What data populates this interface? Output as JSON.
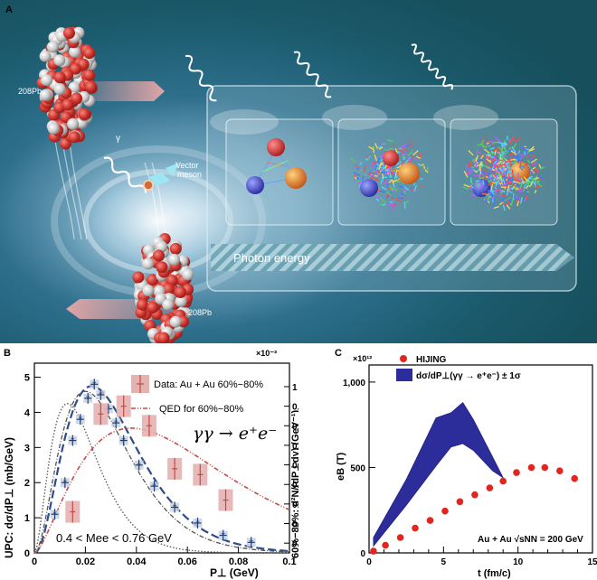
{
  "panelA": {
    "label": "A",
    "pb_top": "208Pb",
    "pb_bottom": "208Pb",
    "gamma": "γ",
    "vector_meson": [
      "Vector",
      "meson"
    ],
    "photon_energy": "Photon energy",
    "colors": {
      "background": "#1f6a7d",
      "nucleon_red": "#d23a32",
      "nucleon_white": "#dcdcdc",
      "arrow_pink": "#e8a5a5",
      "meson_cyan": "#8fe0ef"
    }
  },
  "panelB": {
    "label": "B",
    "ylabel_left": "UPC: dσ/dP⊥ (mb/GeV)",
    "ylabel_right": "60%−80%: d²N/(dP⊥dy) (GeV⁻¹)",
    "exponent_right": "×10⁻³",
    "xlabel": "P⊥ (GeV)",
    "legend_data": "Data: Au + Au 60%−80%",
    "legend_qed": "QED for 60%−80%",
    "process": "γγ → e⁺e⁻",
    "mass_range": "0.4 < Mee < 0.76 GeV",
    "xticks": [
      "0",
      "0.02",
      "0.04",
      "0.06",
      "0.08",
      "0.1"
    ],
    "yticks_left": [
      "0",
      "1",
      "2",
      "3",
      "4",
      "5"
    ],
    "yticks_right": [
      "0.2",
      "0.3",
      "0.4",
      "0.5",
      "0.6",
      "0.7",
      "0.8",
      "0.9",
      "1"
    ]
  },
  "panelC": {
    "label": "C",
    "exponent": "×10¹²",
    "ylabel": "eB (T)",
    "xlabel": "t (fm/c)",
    "legend_hijing": "HIJING",
    "legend_band": "dσ/dP⊥(γγ → e⁺e⁻) ± 1σ",
    "collision": "Au + Au √sNN = 200 GeV",
    "xticks": [
      "0",
      "5",
      "10",
      "15"
    ],
    "yticks": [
      "0",
      "500",
      "1,000"
    ]
  },
  "chart_data": [
    {
      "type": "scatter",
      "title": "",
      "xlabel": "P⊥ (GeV)",
      "ylabel": "UPC: dσ/dP⊥ (mb/GeV)",
      "xlim": [
        0,
        0.1
      ],
      "ylim": [
        0,
        5.4
      ],
      "series": [
        {
          "name": "UPC data",
          "x": [
            0.008,
            0.012,
            0.015,
            0.018,
            0.021,
            0.0235,
            0.026,
            0.029,
            0.032,
            0.035,
            0.041,
            0.047,
            0.055,
            0.064,
            0.074,
            0.085
          ],
          "y": [
            1.1,
            2.0,
            3.2,
            3.8,
            4.4,
            4.8,
            4.5,
            4.1,
            3.7,
            3.2,
            2.5,
            1.9,
            1.3,
            0.85,
            0.5,
            0.3
          ]
        },
        {
          "name": "60%-80% data",
          "x": [
            0.015,
            0.026,
            0.035,
            0.045,
            0.055,
            0.065,
            0.075
          ],
          "y_right": [
            0.36,
            0.86,
            0.9,
            0.8,
            0.58,
            0.55,
            0.42
          ],
          "y_right_scale_1e-3": true
        },
        {
          "name": "QED for 60%-80%",
          "x": [
            0,
            0.01,
            0.02,
            0.03,
            0.038,
            0.05,
            0.06,
            0.07,
            0.08,
            0.09,
            0.1
          ],
          "y": [
            0,
            1.2,
            2.6,
            3.3,
            3.5,
            3.2,
            2.6,
            2.0,
            1.4,
            1.0,
            0.7
          ]
        }
      ]
    },
    {
      "type": "scatter",
      "title": "",
      "xlabel": "t (fm/c)",
      "ylabel": "eB (T)",
      "y_scale": "1e12",
      "xlim": [
        0,
        15
      ],
      "ylim": [
        0,
        1100
      ],
      "series": [
        {
          "name": "HIJING",
          "x": [
            0.3,
            1.1,
            2.1,
            3.1,
            4.1,
            5.1,
            6.1,
            7.1,
            8.1,
            9.0,
            9.9,
            10.9,
            11.8,
            12.8,
            13.8
          ],
          "y": [
            10,
            45,
            90,
            145,
            190,
            245,
            300,
            340,
            380,
            420,
            470,
            500,
            500,
            480,
            435
          ]
        },
        {
          "name": "dσ/dP⊥(γγ → e+e−) ± 1σ",
          "x": [
            0.3,
            2.5,
            4.5,
            5.5,
            6.3,
            7.0,
            8.3,
            9.0
          ],
          "y_upper": [
            90,
            430,
            790,
            820,
            880,
            780,
            560,
            440
          ],
          "y_lower": [
            40,
            280,
            510,
            620,
            640,
            600,
            480,
            440
          ]
        }
      ]
    }
  ]
}
